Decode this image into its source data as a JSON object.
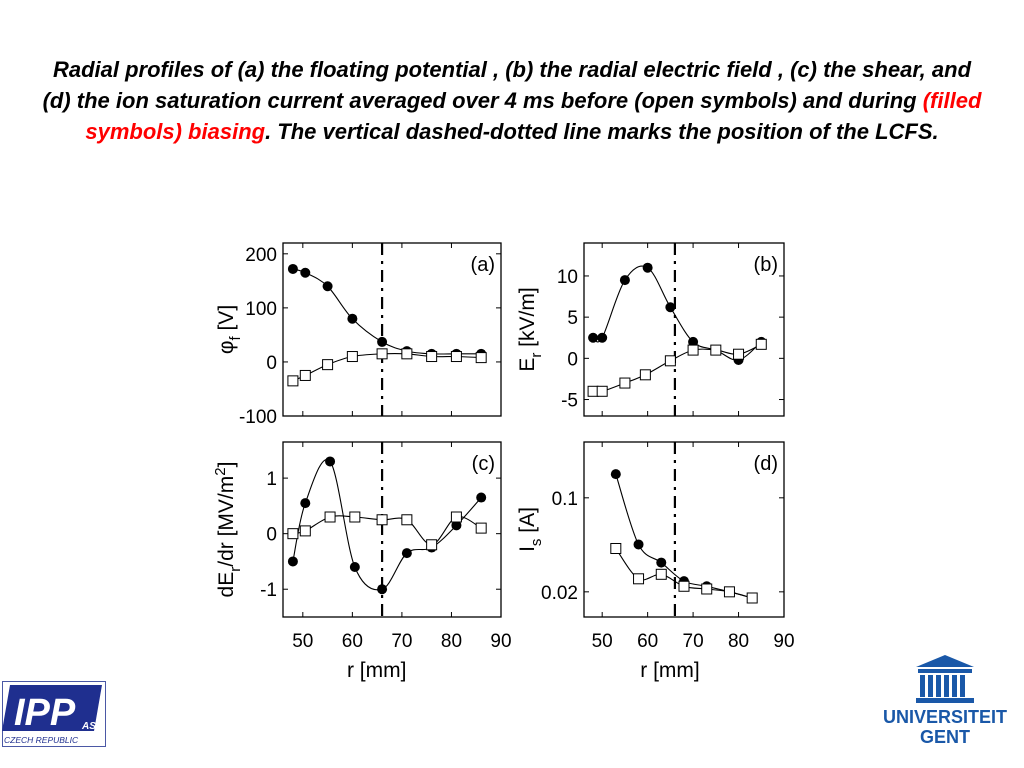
{
  "title": {
    "before": "Radial profiles of (a) the floating potential , (b) the radial electric field , (c) the shear, and (d) the ion saturation current  averaged over 4 ms before (open symbols) and during ",
    "highlight": "(filled symbols) biasing",
    "after": ". The vertical dashed-dotted line marks the position of the LCFS.",
    "highlight_color": "#ff0000"
  },
  "logos": {
    "ipp": {
      "text": "IPP",
      "superscript": "AS",
      "caption": "CZECH REPUBLIC",
      "color": "#1f2f8f"
    },
    "ugent": {
      "line1": "UNIVERSITEIT",
      "line2": "GENT",
      "color": "#1a58a8"
    }
  },
  "legend_note": "open symbols = before biasing; filled symbols = during biasing",
  "chart_data": [
    {
      "type": "line",
      "panel_label": "(a)",
      "xlabel": "",
      "ylabel_main": "φ",
      "ylabel_sub": "f",
      "ylabel_unit": " [V]",
      "xlim": [
        46,
        90
      ],
      "ylim": [
        -100,
        220
      ],
      "yticks": [
        "200",
        "100",
        "0",
        "-100"
      ],
      "ytick_values": [
        200,
        100,
        0,
        -100
      ],
      "xticks": [],
      "xtick_values": [],
      "log_y": false,
      "lcfs_r": 66,
      "series": [
        {
          "style": "filled",
          "x": [
            48,
            50.5,
            55,
            60,
            66,
            71,
            76,
            81,
            86
          ],
          "values": [
            172,
            165,
            140,
            80,
            37,
            20,
            15,
            15,
            15
          ]
        },
        {
          "style": "open",
          "x": [
            48,
            50.5,
            55,
            60,
            66,
            71,
            76,
            81,
            86
          ],
          "values": [
            -35,
            -25,
            -5,
            10,
            15,
            15,
            10,
            10,
            8
          ]
        }
      ]
    },
    {
      "type": "line",
      "panel_label": "(b)",
      "xlabel": "",
      "ylabel_main": "E",
      "ylabel_sub": "r",
      "ylabel_unit": " [kV/m]",
      "xlim": [
        46,
        90
      ],
      "ylim": [
        -7,
        14
      ],
      "yticks": [
        "10",
        "5",
        "0",
        "-5"
      ],
      "ytick_values": [
        10,
        5,
        0,
        -5
      ],
      "xticks": [],
      "xtick_values": [],
      "log_y": false,
      "lcfs_r": 66,
      "series": [
        {
          "style": "filled",
          "x": [
            48,
            50,
            55,
            60,
            65,
            70,
            75,
            80,
            85
          ],
          "values": [
            2.5,
            2.5,
            9.5,
            11,
            6.2,
            2,
            1,
            -0.2,
            2
          ]
        },
        {
          "style": "open",
          "x": [
            48,
            50,
            55,
            59.5,
            65,
            70,
            75,
            80,
            85
          ],
          "values": [
            -4,
            -4,
            -3,
            -2,
            -0.3,
            1,
            1,
            0.5,
            1.7
          ]
        }
      ]
    },
    {
      "type": "line",
      "panel_label": "(c)",
      "xlabel": "r [mm]",
      "ylabel_main": "dE",
      "ylabel_sub": "r",
      "ylabel_unit": "/dr [MV/m",
      "ylabel_sup": "2",
      "ylabel_end": "]",
      "xlim": [
        46,
        90
      ],
      "ylim": [
        -1.5,
        1.65
      ],
      "yticks": [
        "1",
        "0",
        "-1"
      ],
      "ytick_values": [
        1,
        0,
        -1
      ],
      "xticks": [
        "50",
        "60",
        "70",
        "80",
        "90"
      ],
      "xtick_values": [
        50,
        60,
        70,
        80,
        90
      ],
      "log_y": false,
      "lcfs_r": 66,
      "series": [
        {
          "style": "filled",
          "x": [
            48,
            50.5,
            55.5,
            60.5,
            66,
            71,
            76,
            81,
            86
          ],
          "values": [
            -0.5,
            0.55,
            1.3,
            -0.6,
            -1.0,
            -0.35,
            -0.25,
            0.15,
            0.65
          ]
        },
        {
          "style": "open",
          "x": [
            48,
            50.5,
            55.5,
            60.5,
            66,
            71,
            76,
            81,
            86
          ],
          "values": [
            0.0,
            0.05,
            0.3,
            0.3,
            0.25,
            0.25,
            -0.2,
            0.3,
            0.1
          ]
        }
      ]
    },
    {
      "type": "line",
      "panel_label": "(d)",
      "xlabel": "r [mm]",
      "ylabel_main": "I",
      "ylabel_sub": "s",
      "ylabel_unit": " [A]",
      "xlim": [
        46,
        90
      ],
      "ylim": [
        0.013,
        0.26
      ],
      "yticks": [
        "0.1",
        "0.02"
      ],
      "ytick_values": [
        0.1,
        0.02
      ],
      "xticks": [
        "50",
        "60",
        "70",
        "80",
        "90"
      ],
      "xtick_values": [
        50,
        60,
        70,
        80,
        90
      ],
      "log_y": true,
      "lcfs_r": 66,
      "series": [
        {
          "style": "filled",
          "x": [
            53,
            58,
            63,
            68,
            73,
            78,
            83
          ],
          "values": [
            0.15,
            0.045,
            0.033,
            0.024,
            0.022,
            0.02,
            0.018
          ]
        },
        {
          "style": "open",
          "x": [
            53,
            58,
            63,
            68,
            73,
            78,
            83
          ],
          "values": [
            0.042,
            0.025,
            0.027,
            0.022,
            0.021,
            0.02,
            0.018
          ]
        }
      ]
    }
  ]
}
